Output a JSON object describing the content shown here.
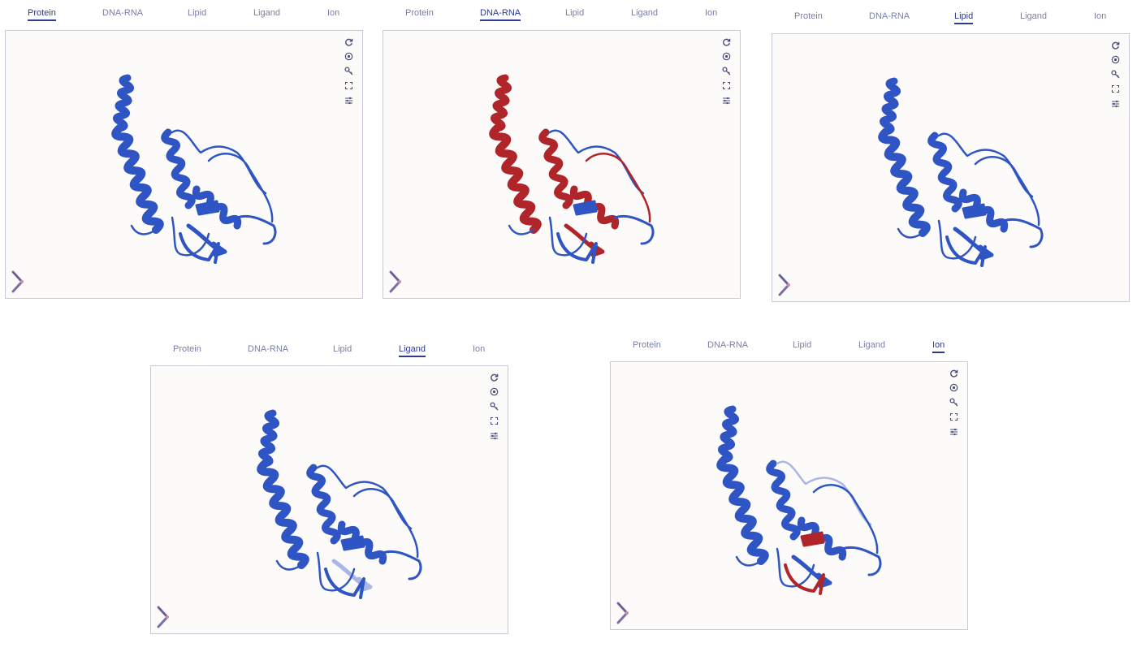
{
  "tab_labels": [
    "Protein",
    "DNA-RNA",
    "Lipid",
    "Ligand",
    "Ion"
  ],
  "colors": {
    "protein_blue": "#2f55c4",
    "pale_blue": "#a9b6e6",
    "dna_red": "#b0252a",
    "tab_inactive": "#7b7fa6",
    "tab_active": "#2e3a8c"
  },
  "icons": [
    "rotate-icon",
    "center-icon",
    "key-icon",
    "fullscreen-icon",
    "settings-icon"
  ],
  "panels": [
    {
      "id": "protein",
      "active_tab": 0,
      "highlight": []
    },
    {
      "id": "dna-rna",
      "active_tab": 1,
      "highlight": [
        "helix1-top",
        "helix1-mid",
        "helix2",
        "loop-right",
        "sheet-bottom",
        "core-helix"
      ]
    },
    {
      "id": "lipid",
      "active_tab": 2,
      "highlight": []
    },
    {
      "id": "ligand",
      "active_tab": 3,
      "highlight": []
    },
    {
      "id": "ion",
      "active_tab": 4,
      "highlight": [
        "ion-sheet",
        "ion-strand"
      ]
    }
  ]
}
